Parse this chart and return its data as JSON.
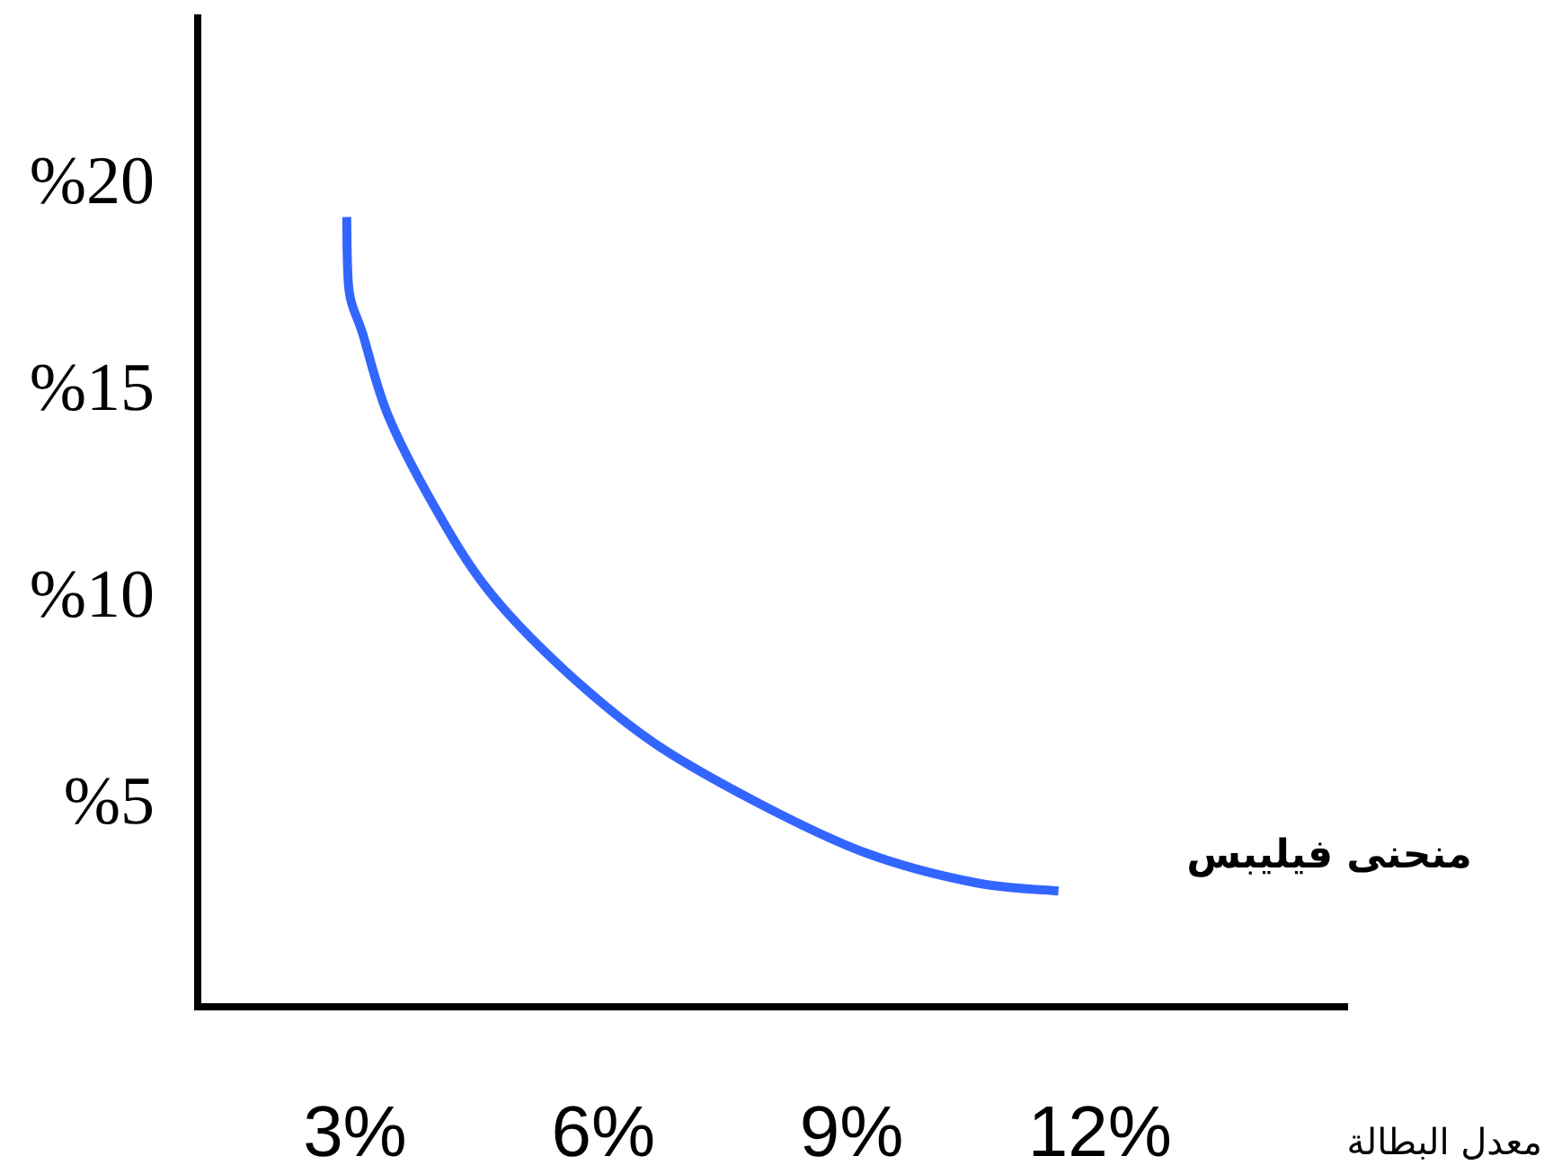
{
  "chart_data": {
    "type": "line",
    "xlabel": "معدل البطالة",
    "xlim": [
      1.1,
      15
    ],
    "ylim": [
      0,
      24
    ],
    "xticks": [
      {
        "value": 3,
        "label": "3%"
      },
      {
        "value": 6,
        "label": "6%"
      },
      {
        "value": 9,
        "label": "9%"
      },
      {
        "value": 12,
        "label": "12%"
      }
    ],
    "yticks": [
      {
        "value": 5,
        "label": "%5"
      },
      {
        "value": 10,
        "label": "%10"
      },
      {
        "value": 15,
        "label": "%15"
      },
      {
        "value": 20,
        "label": "%20"
      }
    ],
    "legend": false,
    "marker": "none",
    "line_style": "solid",
    "series": [
      {
        "name": "منحنى فيليبس",
        "color": "#3366ff",
        "x": [
          2.9,
          2.93,
          3.09,
          3.4,
          3.96,
          4.6,
          5.5,
          6.6,
          7.9,
          9.2,
          10.5,
          11.5
        ],
        "values": [
          19.1,
          17.3,
          16.3,
          14.3,
          12.1,
          10.1,
          8.2,
          6.4,
          4.9,
          3.7,
          3.0,
          2.8
        ]
      }
    ]
  }
}
